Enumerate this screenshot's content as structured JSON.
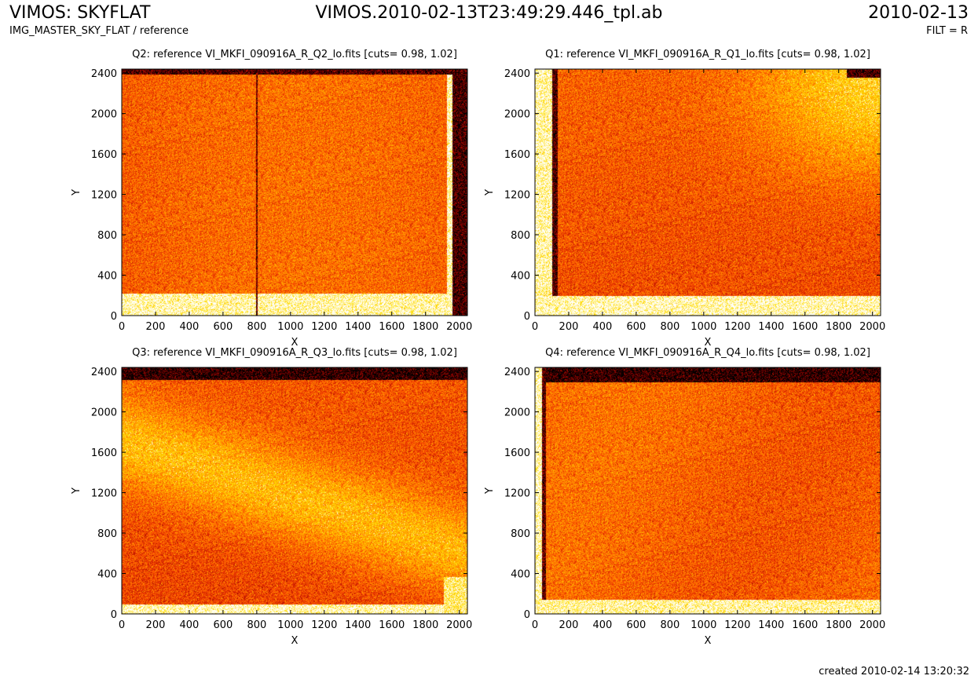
{
  "header": {
    "title": "VIMOS: SKYFLAT",
    "subtitle": "IMG_MASTER_SKY_FLAT / reference",
    "file": "VIMOS.2010-02-13T23:49:29.446_tpl.ab",
    "date": "2010-02-13",
    "filter": "FILT = R",
    "created": "created 2010-02-14 13:20:32"
  },
  "colors": {
    "colormap": [
      "#000000",
      "#8b0000",
      "#d42000",
      "#ff5a00",
      "#ffa000",
      "#ffe000",
      "#ffffff"
    ],
    "frame": "#000000"
  },
  "chart_data": [
    {
      "type": "heatmap",
      "title": "Q2: reference VI_MKFI_090916A_R_Q2_lo.fits [cuts= 0.98, 1.02]",
      "xlabel": "X",
      "ylabel": "Y",
      "xlim": [
        0,
        2048
      ],
      "ylim": [
        0,
        2440
      ],
      "xticks": [
        0,
        200,
        400,
        600,
        800,
        1000,
        1200,
        1400,
        1600,
        1800,
        2000
      ],
      "yticks": [
        0,
        400,
        800,
        1200,
        1600,
        2000,
        2400
      ],
      "cuts": [
        0.98,
        1.02
      ]
    },
    {
      "type": "heatmap",
      "title": "Q1: reference VI_MKFI_090916A_R_Q1_lo.fits [cuts= 0.98, 1.02]",
      "xlabel": "X",
      "ylabel": "Y",
      "xlim": [
        0,
        2048
      ],
      "ylim": [
        0,
        2440
      ],
      "xticks": [
        0,
        200,
        400,
        600,
        800,
        1000,
        1200,
        1400,
        1600,
        1800,
        2000
      ],
      "yticks": [
        0,
        400,
        800,
        1200,
        1600,
        2000,
        2400
      ],
      "cuts": [
        0.98,
        1.02
      ]
    },
    {
      "type": "heatmap",
      "title": "Q3: reference VI_MKFI_090916A_R_Q3_lo.fits [cuts= 0.98, 1.02]",
      "xlabel": "X",
      "ylabel": "Y",
      "xlim": [
        0,
        2048
      ],
      "ylim": [
        0,
        2440
      ],
      "xticks": [
        0,
        200,
        400,
        600,
        800,
        1000,
        1200,
        1400,
        1600,
        1800,
        2000
      ],
      "yticks": [
        0,
        400,
        800,
        1200,
        1600,
        2000,
        2400
      ],
      "cuts": [
        0.98,
        1.02
      ]
    },
    {
      "type": "heatmap",
      "title": "Q4: reference VI_MKFI_090916A_R_Q4_lo.fits [cuts= 0.98, 1.02]",
      "xlabel": "X",
      "ylabel": "Y",
      "xlim": [
        0,
        2048
      ],
      "ylim": [
        0,
        2440
      ],
      "xticks": [
        0,
        200,
        400,
        600,
        800,
        1000,
        1200,
        1400,
        1600,
        1800,
        2000
      ],
      "yticks": [
        0,
        400,
        800,
        1200,
        1600,
        2000,
        2400
      ],
      "cuts": [
        0.98,
        1.02
      ]
    }
  ]
}
